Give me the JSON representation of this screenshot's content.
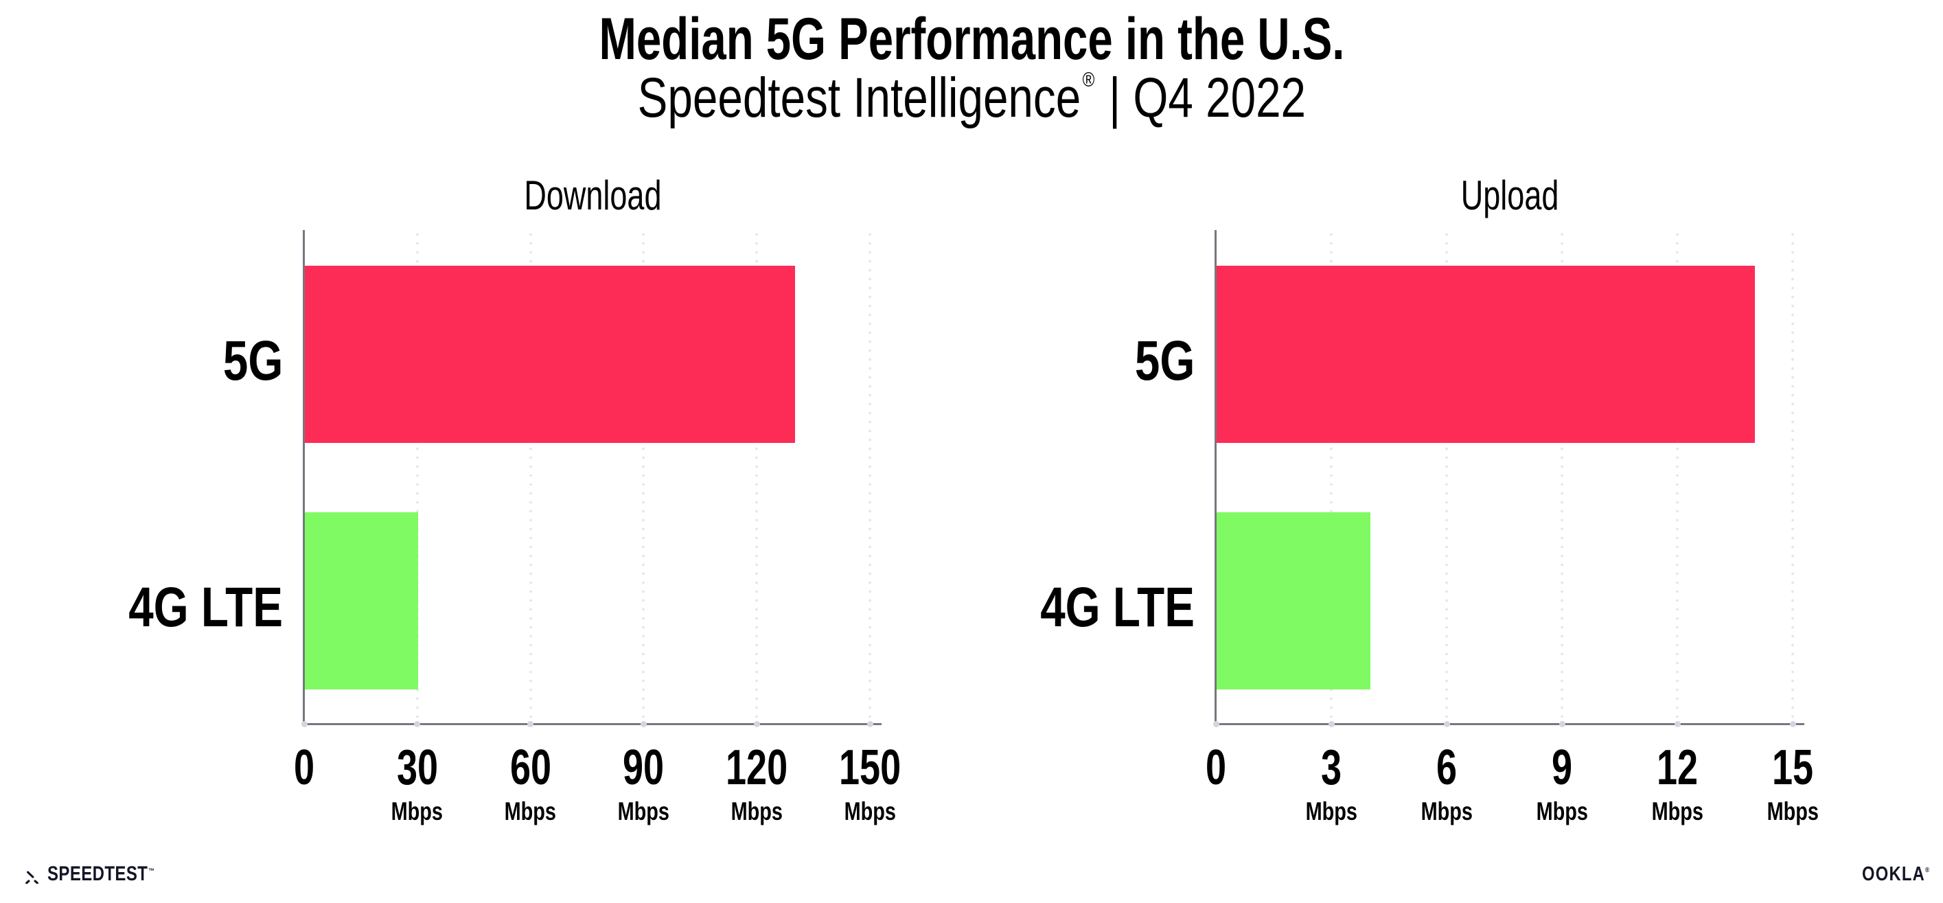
{
  "header": {
    "title": "Median 5G Performance in the U.S.",
    "subtitle_brand": "Speedtest Intelligence",
    "subtitle_reg_mark": "®",
    "subtitle_rest": "| Q4 2022"
  },
  "chart_data": [
    {
      "type": "bar",
      "orientation": "horizontal",
      "title": "Download",
      "categories": [
        "5G",
        "4G LTE"
      ],
      "values": [
        130,
        30
      ],
      "unit": "Mbps",
      "xlabel": "",
      "ylabel": "",
      "xlim": [
        0,
        150
      ],
      "ticks": [
        0,
        30,
        60,
        90,
        120,
        150
      ],
      "grid": "dotted-vertical",
      "legend": "none",
      "bar_colors": [
        "#fc2c56",
        "#7ffa63"
      ]
    },
    {
      "type": "bar",
      "orientation": "horizontal",
      "title": "Upload",
      "categories": [
        "5G",
        "4G LTE"
      ],
      "values": [
        14,
        4
      ],
      "unit": "Mbps",
      "xlabel": "",
      "ylabel": "",
      "xlim": [
        0,
        15
      ],
      "ticks": [
        0,
        3,
        6,
        9,
        12,
        15
      ],
      "grid": "dotted-vertical",
      "legend": "none",
      "bar_colors": [
        "#fc2c56",
        "#7ffa63"
      ]
    }
  ],
  "footer": {
    "speedtest_wordmark": "SPEEDTEST",
    "speedtest_tm": "™",
    "ookla_wordmark": "OOKLA",
    "ookla_reg_mark": "®"
  },
  "colors": {
    "bar_5g": "#fc2c56",
    "bar_4g_lte": "#7ffa63",
    "gridline": "#e4e3ef",
    "axis": "#77777f",
    "text": "#000000",
    "logo": "#141526"
  }
}
